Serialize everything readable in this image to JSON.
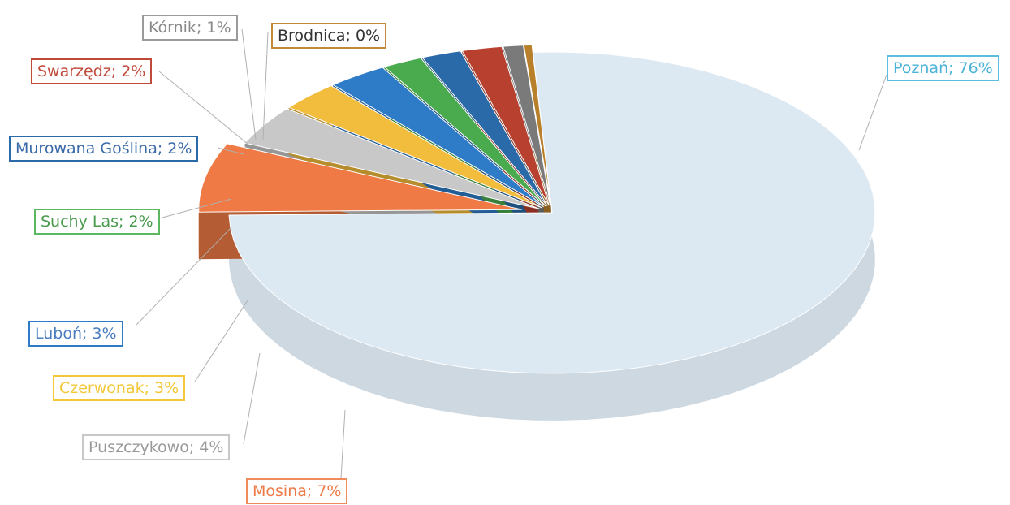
{
  "chart_data": {
    "type": "pie",
    "style": "3d-exploded",
    "slices": [
      {
        "label": "Poznań; 76%",
        "value": 76,
        "color": "#dce8f2",
        "text_color": "#4bb3d8",
        "border": "#5bbede"
      },
      {
        "label": "Mosina; 7%",
        "value": 7,
        "color": "#f07a45",
        "text_color": "#ee7a48",
        "border": "#ef8a5c"
      },
      {
        "label": "Puszczykowo; 4%",
        "value": 4,
        "color": "#c8c8c8",
        "text_color": "#9a9a9a",
        "border": "#c8c8c8"
      },
      {
        "label": "Czerwonak; 3%",
        "value": 3,
        "color": "#f2bc3c",
        "text_color": "#f2c83a",
        "border": "#f2c83a"
      },
      {
        "label": "Luboń; 3%",
        "value": 3,
        "color": "#2e7cc8",
        "text_color": "#4a7ec0",
        "border": "#2e7cc8"
      },
      {
        "label": "Suchy Las; 2%",
        "value": 2,
        "color": "#4aaa4e",
        "text_color": "#4a9a4e",
        "border": "#5cb860"
      },
      {
        "label": "Murowana Goślina; 2%",
        "value": 2,
        "color": "#2a6aa8",
        "text_color": "#3a6aa8",
        "border": "#2a6aa8"
      },
      {
        "label": "Swarzędz; 2%",
        "value": 2,
        "color": "#b8402e",
        "text_color": "#c04a3a",
        "border": "#c04a3a"
      },
      {
        "label": "Kórnik; 1%",
        "value": 1,
        "color": "#7a7a7a",
        "text_color": "#8a8a8a",
        "border": "#9a9a9a"
      },
      {
        "label": "Brodnica; 0%",
        "value": 0.4,
        "color": "#b8802a",
        "text_color": "#333333",
        "border": "#c08a3a"
      }
    ],
    "legend": "none"
  }
}
